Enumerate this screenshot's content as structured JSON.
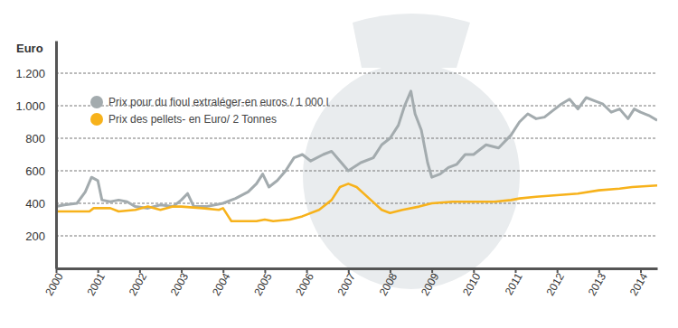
{
  "chart_data": {
    "type": "line",
    "y_label": "Euro",
    "xlim": [
      2000,
      2014.4
    ],
    "xticks": [
      2000,
      2001,
      2002,
      2003,
      2004,
      2005,
      2006,
      2007,
      2008,
      2009,
      2010,
      2011,
      2012,
      2013,
      2014
    ],
    "ylim": [
      0,
      1400
    ],
    "yticks": [
      200,
      400,
      600,
      800,
      {
        "value": 1000,
        "label": "1.000"
      },
      {
        "value": 1200,
        "label": "1.200"
      }
    ],
    "grid": true,
    "legend": "top-left",
    "series": [
      {
        "name": "Prix pour du fioul extraléger-en euros / 1 000 l",
        "color": "#a3abae",
        "x": [
          2000.0,
          2000.2,
          2000.5,
          2000.7,
          2000.85,
          2001.0,
          2001.1,
          2001.3,
          2001.5,
          2001.7,
          2001.9,
          2002.2,
          2002.5,
          2002.8,
          2003.0,
          2003.15,
          2003.3,
          2003.6,
          2004.0,
          2004.3,
          2004.6,
          2004.8,
          2004.95,
          2005.1,
          2005.3,
          2005.5,
          2005.7,
          2005.9,
          2006.1,
          2006.4,
          2006.6,
          2006.8,
          2007.0,
          2007.3,
          2007.6,
          2007.8,
          2008.0,
          2008.2,
          2008.35,
          2008.5,
          2008.6,
          2008.75,
          2008.9,
          2009.0,
          2009.2,
          2009.4,
          2009.6,
          2009.8,
          2010.0,
          2010.3,
          2010.6,
          2010.9,
          2011.1,
          2011.3,
          2011.5,
          2011.7,
          2011.9,
          2012.1,
          2012.3,
          2012.5,
          2012.7,
          2012.9,
          2013.1,
          2013.3,
          2013.5,
          2013.7,
          2013.85,
          2014.0,
          2014.2,
          2014.4
        ],
        "values": [
          380,
          390,
          400,
          470,
          560,
          540,
          420,
          410,
          420,
          410,
          380,
          370,
          390,
          380,
          420,
          460,
          380,
          380,
          400,
          430,
          470,
          520,
          580,
          500,
          540,
          600,
          680,
          700,
          660,
          700,
          720,
          660,
          600,
          650,
          680,
          760,
          800,
          880,
          1000,
          1090,
          950,
          850,
          650,
          560,
          580,
          620,
          640,
          700,
          700,
          760,
          740,
          820,
          900,
          950,
          920,
          930,
          970,
          1010,
          1040,
          980,
          1050,
          1030,
          1010,
          960,
          980,
          920,
          980,
          960,
          940,
          910
        ]
      },
      {
        "name": "Prix des pellets- en Euro/ 2 Tonnes",
        "color": "#f7b21b",
        "x": [
          2000.0,
          2000.8,
          2000.9,
          2001.3,
          2001.5,
          2001.9,
          2002.2,
          2002.5,
          2002.8,
          2003.0,
          2003.5,
          2003.9,
          2004.0,
          2004.2,
          2004.8,
          2005.0,
          2005.2,
          2005.6,
          2005.9,
          2006.3,
          2006.6,
          2006.8,
          2007.0,
          2007.2,
          2007.5,
          2007.8,
          2008.0,
          2008.3,
          2008.7,
          2009.0,
          2009.5,
          2010.0,
          2010.5,
          2010.9,
          2011.1,
          2011.5,
          2012.0,
          2012.5,
          2013.0,
          2013.5,
          2013.8,
          2014.4
        ],
        "values": [
          350,
          350,
          370,
          370,
          350,
          360,
          380,
          360,
          380,
          380,
          370,
          360,
          370,
          290,
          290,
          300,
          290,
          300,
          320,
          360,
          420,
          500,
          520,
          500,
          430,
          360,
          340,
          360,
          380,
          400,
          410,
          410,
          410,
          420,
          430,
          440,
          450,
          460,
          480,
          490,
          500,
          510
        ]
      }
    ]
  }
}
